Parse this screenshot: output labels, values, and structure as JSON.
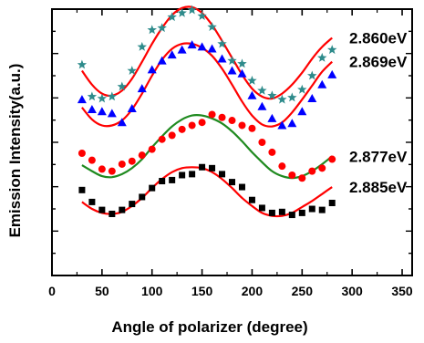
{
  "chart_data": {
    "type": "scatter",
    "xlabel": "Angle of polarizer (degree)",
    "ylabel": "Emission Intensity(a.u.)",
    "xlim": [
      0,
      360
    ],
    "xticks": [
      "0",
      "50",
      "100",
      "150",
      "200",
      "250",
      "300",
      "350"
    ],
    "y_tick_labels": "none",
    "grid": false,
    "legend": "none",
    "series": [
      {
        "name": "2.860eV",
        "marker": "star",
        "marker_color": "#2e8b8b",
        "fit_color": "#ff0000",
        "x": [
          30,
          40,
          50,
          60,
          70,
          80,
          90,
          100,
          110,
          120,
          130,
          140,
          150,
          160,
          170,
          180,
          190,
          200,
          210,
          220,
          230,
          240,
          250,
          260,
          270,
          280
        ],
        "y": [
          0.78,
          0.46,
          0.44,
          0.46,
          0.56,
          0.72,
          0.96,
          1.13,
          1.15,
          1.26,
          1.3,
          1.33,
          1.27,
          1.16,
          0.99,
          0.82,
          0.79,
          0.62,
          0.52,
          0.47,
          0.43,
          0.45,
          0.53,
          0.67,
          0.85,
          0.93
        ],
        "fit_x": [
          30,
          40,
          50,
          60,
          70,
          80,
          90,
          100,
          110,
          120,
          130,
          140,
          150,
          160,
          170,
          180,
          190,
          200,
          210,
          220,
          230,
          240,
          250,
          260,
          270,
          280
        ],
        "fit_y": [
          0.72,
          0.58,
          0.49,
          0.47,
          0.52,
          0.64,
          0.81,
          0.99,
          1.15,
          1.28,
          1.35,
          1.36,
          1.3,
          1.18,
          1.02,
          0.85,
          0.68,
          0.54,
          0.46,
          0.44,
          0.49,
          0.58,
          0.7,
          0.84,
          0.96,
          1.05
        ]
      },
      {
        "name": "2.869eV",
        "marker": "triangle",
        "marker_color": "#0000ff",
        "fit_color": "#ff0000",
        "x": [
          30,
          40,
          50,
          60,
          70,
          80,
          90,
          100,
          110,
          120,
          130,
          140,
          150,
          160,
          170,
          180,
          190,
          200,
          210,
          220,
          230,
          240,
          250,
          260,
          270,
          280
        ],
        "y": [
          0.43,
          0.33,
          0.31,
          0.29,
          0.2,
          0.34,
          0.54,
          0.73,
          0.82,
          0.88,
          0.93,
          0.98,
          0.96,
          0.94,
          0.84,
          0.72,
          0.69,
          0.47,
          0.36,
          0.24,
          0.17,
          0.19,
          0.31,
          0.44,
          0.58,
          0.68
        ],
        "fit_x": [
          30,
          40,
          50,
          60,
          70,
          80,
          90,
          100,
          110,
          120,
          130,
          140,
          150,
          160,
          170,
          180,
          190,
          200,
          210,
          220,
          230,
          240,
          250,
          260,
          270,
          280
        ],
        "fit_y": [
          0.35,
          0.23,
          0.17,
          0.17,
          0.22,
          0.33,
          0.49,
          0.67,
          0.83,
          0.94,
          0.99,
          0.99,
          0.95,
          0.87,
          0.74,
          0.58,
          0.41,
          0.27,
          0.18,
          0.16,
          0.2,
          0.3,
          0.43,
          0.57,
          0.71,
          0.81
        ]
      },
      {
        "name": "2.877eV",
        "marker": "circle",
        "marker_color": "#ff0000",
        "fit_color": "#1f8a1f",
        "x": [
          30,
          40,
          50,
          60,
          70,
          80,
          90,
          100,
          110,
          120,
          130,
          140,
          150,
          160,
          170,
          180,
          190,
          200,
          210,
          220,
          230,
          240,
          250,
          260,
          270,
          280
        ],
        "y": [
          -0.11,
          -0.18,
          -0.27,
          -0.29,
          -0.22,
          -0.19,
          -0.13,
          -0.07,
          0.03,
          0.07,
          0.13,
          0.17,
          0.2,
          0.28,
          0.25,
          0.22,
          0.17,
          0.14,
          0.0,
          -0.1,
          -0.24,
          -0.33,
          -0.36,
          -0.29,
          -0.26,
          -0.17
        ],
        "fit_x": [
          30,
          40,
          50,
          60,
          70,
          80,
          90,
          100,
          110,
          120,
          130,
          140,
          150,
          160,
          170,
          180,
          190,
          200,
          210,
          220,
          230,
          240,
          250,
          260,
          270,
          280
        ],
        "fit_y": [
          -0.23,
          -0.29,
          -0.34,
          -0.35,
          -0.32,
          -0.26,
          -0.17,
          -0.05,
          0.06,
          0.16,
          0.23,
          0.27,
          0.27,
          0.24,
          0.19,
          0.11,
          0.01,
          -0.1,
          -0.2,
          -0.29,
          -0.34,
          -0.36,
          -0.34,
          -0.29,
          -0.22,
          -0.14
        ]
      },
      {
        "name": "2.885eV",
        "marker": "square",
        "marker_color": "#000000",
        "fit_color": "#ff0000",
        "x": [
          30,
          40,
          50,
          60,
          70,
          80,
          90,
          100,
          110,
          120,
          130,
          140,
          150,
          160,
          170,
          180,
          190,
          200,
          210,
          220,
          230,
          240,
          250,
          260,
          270,
          280
        ],
        "y": [
          -0.48,
          -0.6,
          -0.68,
          -0.72,
          -0.68,
          -0.62,
          -0.55,
          -0.46,
          -0.39,
          -0.38,
          -0.33,
          -0.32,
          -0.25,
          -0.26,
          -0.32,
          -0.4,
          -0.45,
          -0.58,
          -0.66,
          -0.71,
          -0.7,
          -0.73,
          -0.71,
          -0.67,
          -0.68,
          -0.61
        ],
        "fit_x": [
          30,
          40,
          50,
          60,
          70,
          80,
          90,
          100,
          110,
          120,
          130,
          140,
          150,
          160,
          170,
          180,
          190,
          200,
          210,
          220,
          230,
          240,
          250,
          260,
          270,
          280
        ],
        "fit_y": [
          -0.6,
          -0.67,
          -0.71,
          -0.72,
          -0.7,
          -0.64,
          -0.56,
          -0.46,
          -0.37,
          -0.3,
          -0.26,
          -0.25,
          -0.26,
          -0.3,
          -0.37,
          -0.46,
          -0.56,
          -0.64,
          -0.71,
          -0.74,
          -0.74,
          -0.71,
          -0.65,
          -0.59,
          -0.52,
          -0.45
        ]
      }
    ]
  }
}
